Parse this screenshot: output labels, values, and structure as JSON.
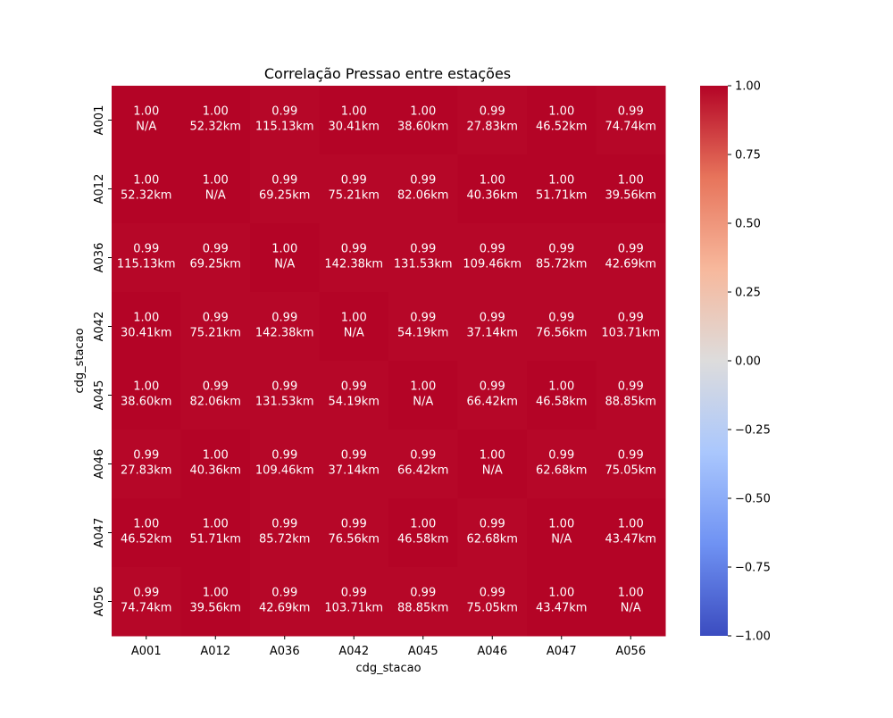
{
  "chart_data": {
    "type": "heatmap",
    "title": "Correlação Pressao entre estações",
    "xlabel": "cdg_stacao",
    "ylabel": "cdg_stacao",
    "x_categories": [
      "A001",
      "A012",
      "A036",
      "A042",
      "A045",
      "A046",
      "A047",
      "A056"
    ],
    "y_categories": [
      "A001",
      "A012",
      "A036",
      "A042",
      "A045",
      "A046",
      "A047",
      "A056"
    ],
    "values": [
      [
        1.0,
        1.0,
        0.99,
        1.0,
        1.0,
        0.99,
        1.0,
        0.99
      ],
      [
        1.0,
        1.0,
        0.99,
        0.99,
        0.99,
        1.0,
        1.0,
        1.0
      ],
      [
        0.99,
        0.99,
        1.0,
        0.99,
        0.99,
        0.99,
        0.99,
        0.99
      ],
      [
        1.0,
        0.99,
        0.99,
        1.0,
        0.99,
        0.99,
        0.99,
        0.99
      ],
      [
        1.0,
        0.99,
        0.99,
        0.99,
        1.0,
        0.99,
        1.0,
        0.99
      ],
      [
        0.99,
        1.0,
        0.99,
        0.99,
        0.99,
        1.0,
        0.99,
        0.99
      ],
      [
        1.0,
        1.0,
        0.99,
        0.99,
        1.0,
        0.99,
        1.0,
        1.0
      ],
      [
        0.99,
        1.0,
        0.99,
        0.99,
        0.99,
        0.99,
        1.0,
        1.0
      ]
    ],
    "value_labels": [
      [
        "1.00",
        "1.00",
        "0.99",
        "1.00",
        "1.00",
        "0.99",
        "1.00",
        "0.99"
      ],
      [
        "1.00",
        "1.00",
        "0.99",
        "0.99",
        "0.99",
        "1.00",
        "1.00",
        "1.00"
      ],
      [
        "0.99",
        "0.99",
        "1.00",
        "0.99",
        "0.99",
        "0.99",
        "0.99",
        "0.99"
      ],
      [
        "1.00",
        "0.99",
        "0.99",
        "1.00",
        "0.99",
        "0.99",
        "0.99",
        "0.99"
      ],
      [
        "1.00",
        "0.99",
        "0.99",
        "0.99",
        "1.00",
        "0.99",
        "1.00",
        "0.99"
      ],
      [
        "0.99",
        "1.00",
        "0.99",
        "0.99",
        "0.99",
        "1.00",
        "0.99",
        "0.99"
      ],
      [
        "1.00",
        "1.00",
        "0.99",
        "0.99",
        "1.00",
        "0.99",
        "1.00",
        "1.00"
      ],
      [
        "0.99",
        "1.00",
        "0.99",
        "0.99",
        "0.99",
        "0.99",
        "1.00",
        "1.00"
      ]
    ],
    "distance_labels": [
      [
        "N/A",
        "52.32km",
        "115.13km",
        "30.41km",
        "38.60km",
        "27.83km",
        "46.52km",
        "74.74km"
      ],
      [
        "52.32km",
        "N/A",
        "69.25km",
        "75.21km",
        "82.06km",
        "40.36km",
        "51.71km",
        "39.56km"
      ],
      [
        "115.13km",
        "69.25km",
        "N/A",
        "142.38km",
        "131.53km",
        "109.46km",
        "85.72km",
        "42.69km"
      ],
      [
        "30.41km",
        "75.21km",
        "142.38km",
        "N/A",
        "54.19km",
        "37.14km",
        "76.56km",
        "103.71km"
      ],
      [
        "38.60km",
        "82.06km",
        "131.53km",
        "54.19km",
        "N/A",
        "66.42km",
        "46.58km",
        "88.85km"
      ],
      [
        "27.83km",
        "40.36km",
        "109.46km",
        "37.14km",
        "66.42km",
        "N/A",
        "62.68km",
        "75.05km"
      ],
      [
        "46.52km",
        "51.71km",
        "85.72km",
        "76.56km",
        "46.58km",
        "62.68km",
        "N/A",
        "43.47km"
      ],
      [
        "74.74km",
        "39.56km",
        "42.69km",
        "103.71km",
        "88.85km",
        "75.05km",
        "43.47km",
        "N/A"
      ]
    ],
    "colorbar": {
      "vmin": -1.0,
      "vmax": 1.0,
      "colormap": "coolwarm",
      "ticks": [
        1.0,
        0.75,
        0.5,
        0.25,
        0.0,
        -0.25,
        -0.5,
        -0.75,
        -1.0
      ],
      "tick_labels": [
        "1.00",
        "0.75",
        "0.50",
        "0.25",
        "0.00",
        "−0.25",
        "−0.50",
        "−0.75",
        "−1.00"
      ],
      "stops": [
        "#3b4cc0",
        "#6f92f3",
        "#aac7fd",
        "#dddcdc",
        "#f7b89c",
        "#e7745b",
        "#b40426"
      ]
    },
    "grid": false,
    "legend": "colorbar-right"
  }
}
